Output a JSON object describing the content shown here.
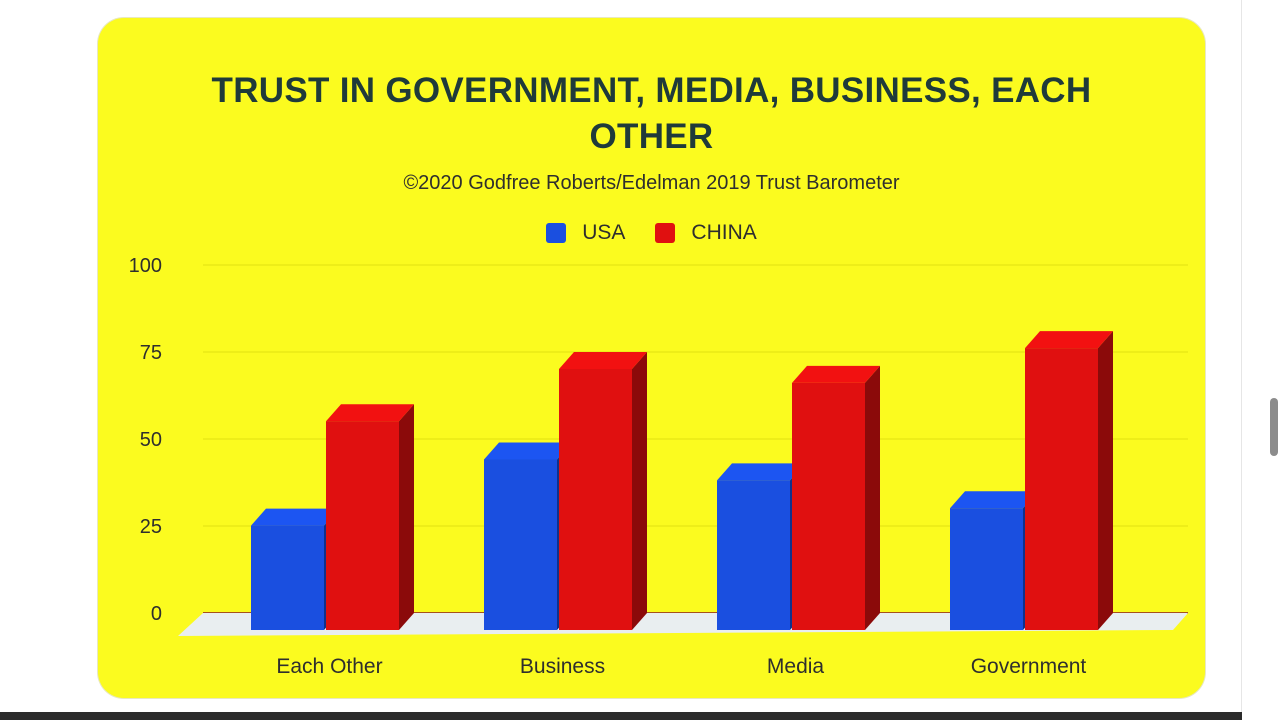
{
  "colors": {
    "background": "#fbfb1f",
    "usa": "#1a4fe0",
    "china": "#e01010"
  },
  "chart_data": {
    "type": "bar",
    "title_lines": [
      "TRUST IN GOVERNMENT, MEDIA, BUSINESS, EACH",
      "OTHER"
    ],
    "subtitle": "©2020 Godfree Roberts/Edelman 2019 Trust Barometer",
    "categories": [
      "Each Other",
      "Business",
      "Media",
      "Government"
    ],
    "series": [
      {
        "name": "USA",
        "values": [
          30,
          49,
          43,
          35
        ]
      },
      {
        "name": "CHINA",
        "values": [
          60,
          75,
          71,
          81
        ]
      }
    ],
    "yticks": [
      0,
      25,
      50,
      75,
      100
    ],
    "ylim": [
      0,
      100
    ],
    "grid": true,
    "legend_position": "top-center"
  }
}
